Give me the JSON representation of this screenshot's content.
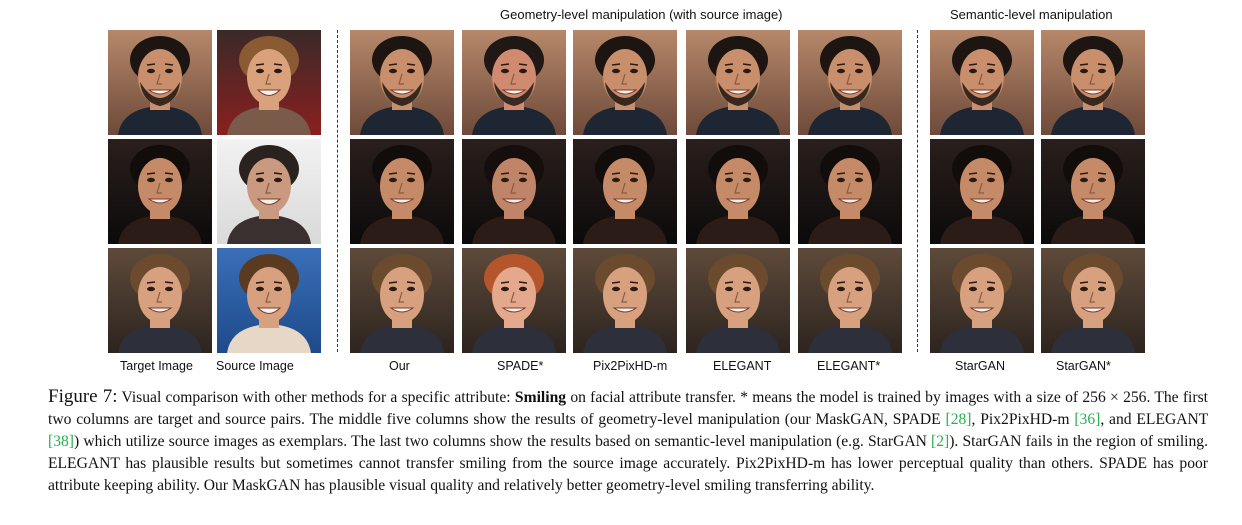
{
  "headers": {
    "geometry": "Geometry-level manipulation (with source image)",
    "semantic": "Semantic-level manipulation"
  },
  "columns": [
    {
      "label": "Target Image"
    },
    {
      "label": "Source Image"
    },
    {
      "label": "Our"
    },
    {
      "label": "SPADE*"
    },
    {
      "label": "Pix2PixHD-m"
    },
    {
      "label": "ELEGANT"
    },
    {
      "label": "ELEGANT*"
    },
    {
      "label": "StarGAN"
    },
    {
      "label": "StarGAN*"
    }
  ],
  "caption": {
    "figure_label": "Figure 7:",
    "text_1": "Visual comparison with other methods for a specific attribute:",
    "bold_term": "Smiling",
    "text_2": "on facial attribute transfer. * means the model is trained by images with a size of 256 × 256. The first two columns are target and source pairs. The middle five columns show the results of geometry-level manipulation (our MaskGAN, SPADE",
    "ref_spade": "[28]",
    "text_3": ", Pix2PixHD-m",
    "ref_pix2pix": "[36]",
    "text_4": ", and ELEGANT",
    "ref_elegant": "[38]",
    "text_5": ") which utilize source images as exemplars. The last two columns show the results based on semantic-level manipulation (e.g. StarGAN",
    "ref_stargan": "[2]",
    "text_6": "). StarGAN fails in the region of smiling. ELEGANT has plausible results but sometimes cannot transfer smiling from the source image accurately. Pix2PixHD-m has lower perceptual quality than others. SPADE has poor attribute keeping ability. Our MaskGAN has plausible visual quality and relatively better geometry-level smiling transferring ability."
  }
}
